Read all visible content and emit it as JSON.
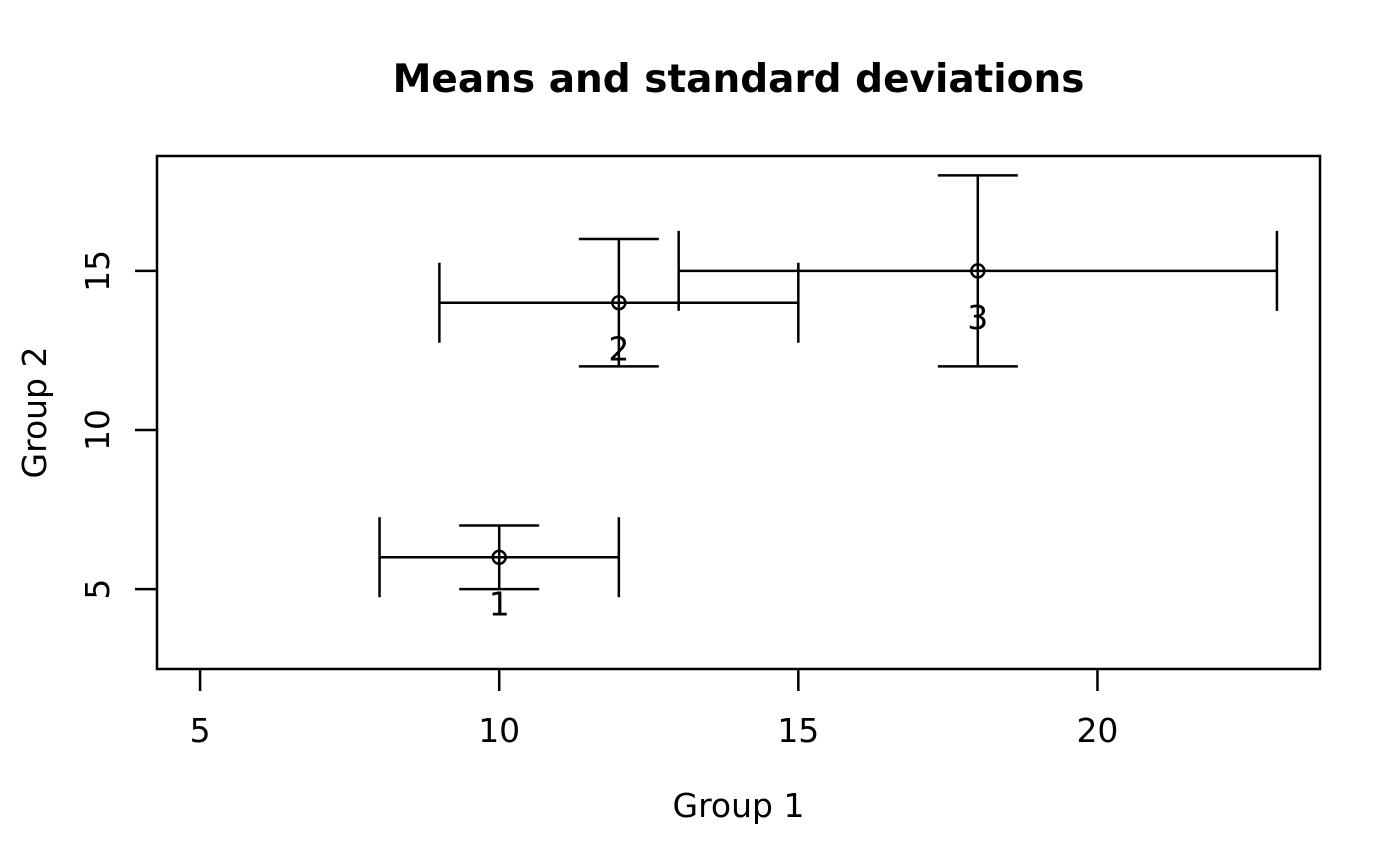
{
  "chart_data": {
    "type": "scatter",
    "title": "Means and standard deviations",
    "xlabel": "Group 1",
    "ylabel": "Group 2",
    "error_bars": "both",
    "points": [
      {
        "label": "1",
        "x": 10,
        "y": 6,
        "sd_x": 2,
        "sd_y": 1
      },
      {
        "label": "2",
        "x": 12,
        "y": 14,
        "sd_x": 3,
        "sd_y": 2
      },
      {
        "label": "3",
        "x": 18,
        "y": 15,
        "sd_x": 5,
        "sd_y": 3
      }
    ],
    "x_ticks": [
      5,
      10,
      15,
      20
    ],
    "y_ticks": [
      5,
      10,
      15
    ],
    "xlim": [
      4.28,
      23.72
    ],
    "ylim": [
      2.49,
      18.61
    ],
    "grid": false,
    "legend": null,
    "marker": "open-circle",
    "colors": {
      "foreground": "#000000",
      "background": "#ffffff"
    }
  }
}
